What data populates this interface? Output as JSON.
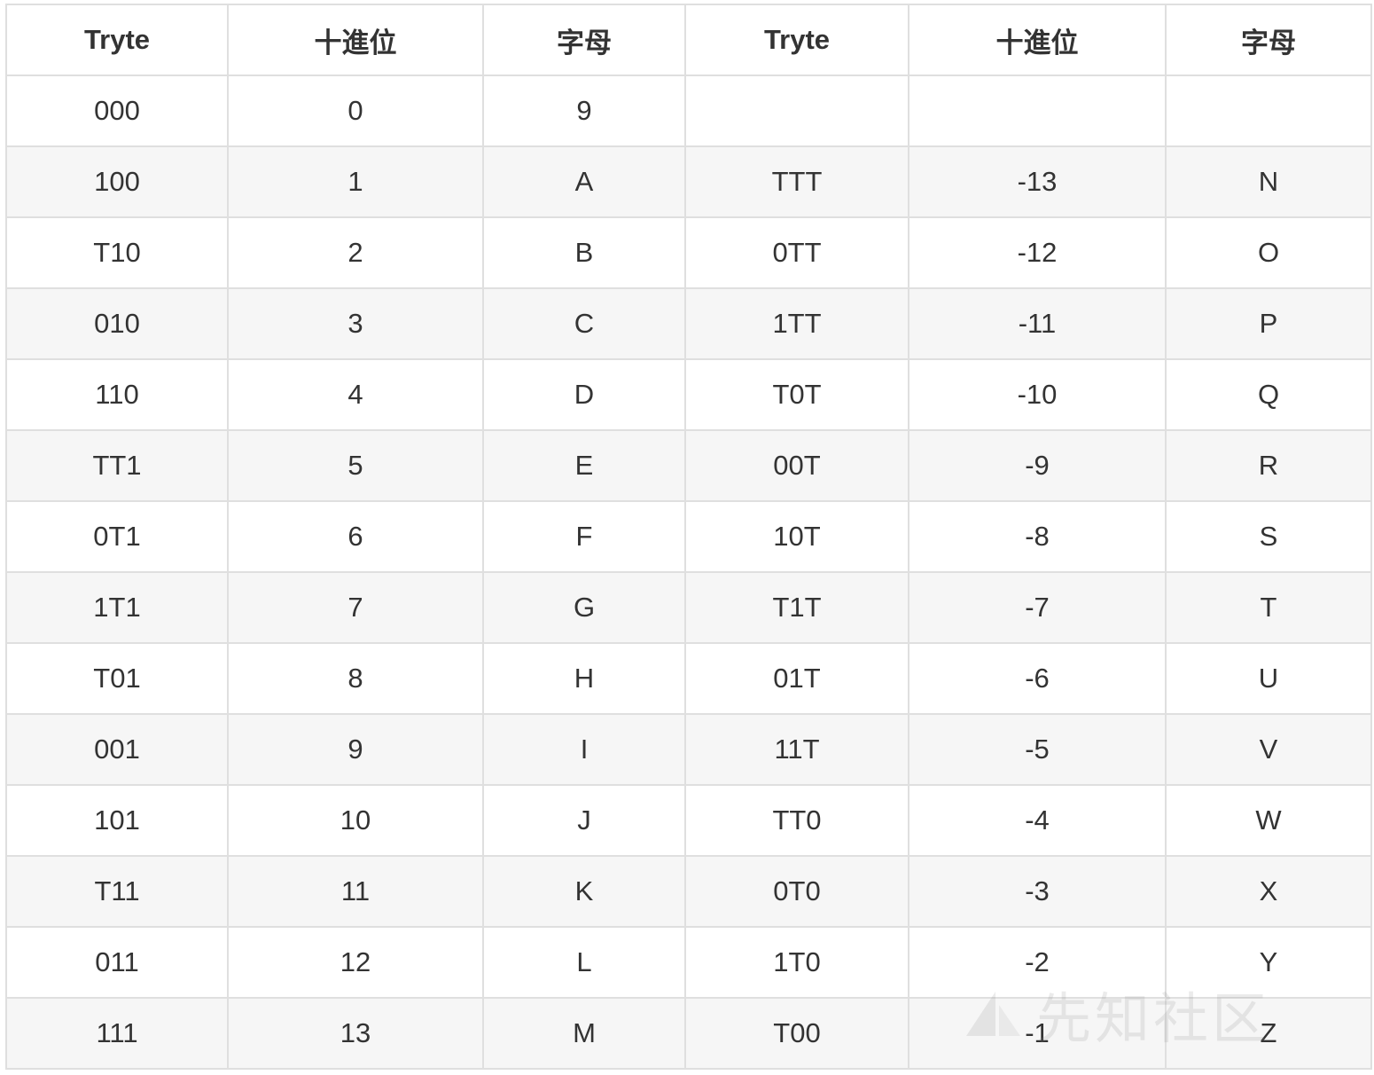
{
  "table": {
    "headers": [
      "Tryte",
      "十進位",
      "字母",
      "Tryte",
      "十進位",
      "字母"
    ],
    "rows": [
      [
        "000",
        "0",
        "9",
        "",
        "",
        ""
      ],
      [
        "100",
        "1",
        "A",
        "TTT",
        "-13",
        "N"
      ],
      [
        "T10",
        "2",
        "B",
        "0TT",
        "-12",
        "O"
      ],
      [
        "010",
        "3",
        "C",
        "1TT",
        "-11",
        "P"
      ],
      [
        "110",
        "4",
        "D",
        "T0T",
        "-10",
        "Q"
      ],
      [
        "TT1",
        "5",
        "E",
        "00T",
        "-9",
        "R"
      ],
      [
        "0T1",
        "6",
        "F",
        "10T",
        "-8",
        "S"
      ],
      [
        "1T1",
        "7",
        "G",
        "T1T",
        "-7",
        "T"
      ],
      [
        "T01",
        "8",
        "H",
        "01T",
        "-6",
        "U"
      ],
      [
        "001",
        "9",
        "I",
        "11T",
        "-5",
        "V"
      ],
      [
        "101",
        "10",
        "J",
        "TT0",
        "-4",
        "W"
      ],
      [
        "T11",
        "11",
        "K",
        "0T0",
        "-3",
        "X"
      ],
      [
        "011",
        "12",
        "L",
        "1T0",
        "-2",
        "Y"
      ],
      [
        "111",
        "13",
        "M",
        "T00",
        "-1",
        "Z"
      ]
    ]
  },
  "watermark": {
    "text": "先知社区",
    "icon": "xianzhi-logo-icon"
  }
}
